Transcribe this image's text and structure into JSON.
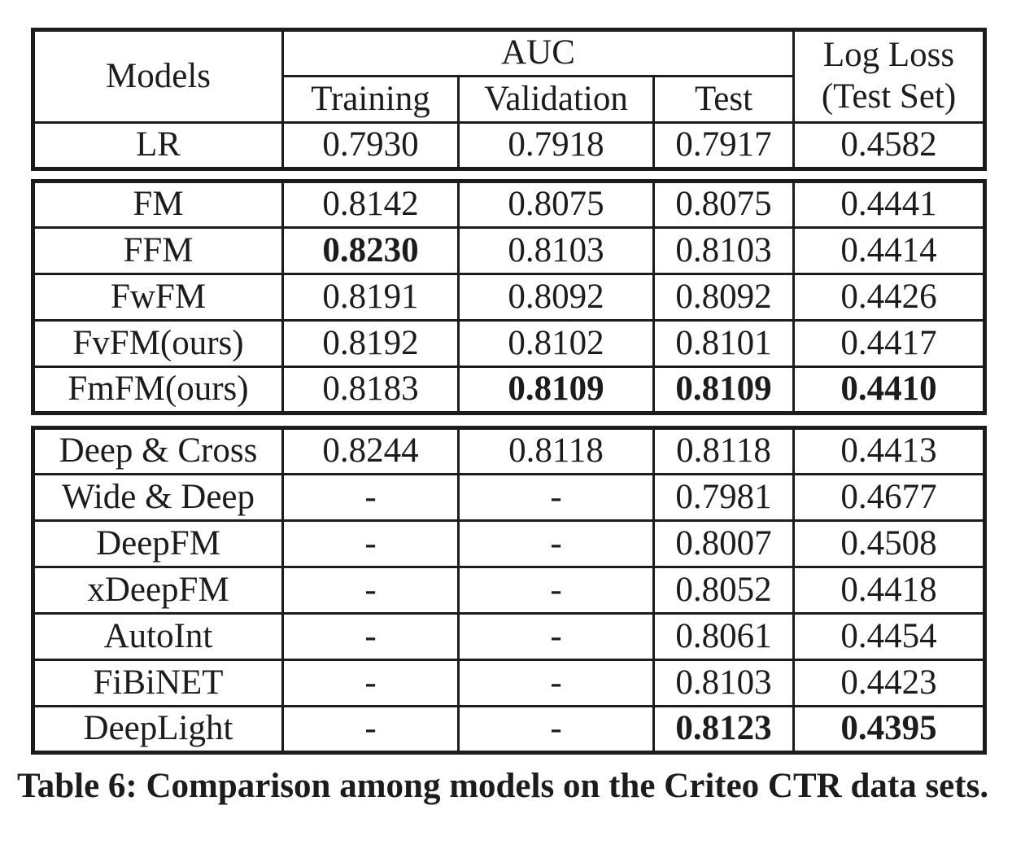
{
  "header": {
    "models": "Models",
    "auc": "AUC",
    "sub": [
      "Training",
      "Validation",
      "Test"
    ],
    "logloss_line1": "Log Loss",
    "logloss_line2": "(Test Set)"
  },
  "groups": [
    {
      "rows": [
        {
          "model": "LR",
          "values": [
            "0.7930",
            "0.7918",
            "0.7917",
            "0.4582"
          ],
          "bold": [
            false,
            false,
            false,
            false
          ]
        }
      ]
    },
    {
      "rows": [
        {
          "model": "FM",
          "values": [
            "0.8142",
            "0.8075",
            "0.8075",
            "0.4441"
          ],
          "bold": [
            false,
            false,
            false,
            false
          ]
        },
        {
          "model": "FFM",
          "values": [
            "0.8230",
            "0.8103",
            "0.8103",
            "0.4414"
          ],
          "bold": [
            true,
            false,
            false,
            false
          ]
        },
        {
          "model": "FwFM",
          "values": [
            "0.8191",
            "0.8092",
            "0.8092",
            "0.4426"
          ],
          "bold": [
            false,
            false,
            false,
            false
          ]
        },
        {
          "model": "FvFM(ours)",
          "values": [
            "0.8192",
            "0.8102",
            "0.8101",
            "0.4417"
          ],
          "bold": [
            false,
            false,
            false,
            false
          ]
        },
        {
          "model": "FmFM(ours)",
          "values": [
            "0.8183",
            "0.8109",
            "0.8109",
            "0.4410"
          ],
          "bold": [
            false,
            true,
            true,
            true
          ]
        }
      ]
    },
    {
      "rows": [
        {
          "model": "Deep & Cross",
          "values": [
            "0.8244",
            "0.8118",
            "0.8118",
            "0.4413"
          ],
          "bold": [
            false,
            false,
            false,
            false
          ]
        },
        {
          "model": "Wide & Deep",
          "values": [
            "-",
            "-",
            "0.7981",
            "0.4677"
          ],
          "bold": [
            false,
            false,
            false,
            false
          ]
        },
        {
          "model": "DeepFM",
          "values": [
            "-",
            "-",
            "0.8007",
            "0.4508"
          ],
          "bold": [
            false,
            false,
            false,
            false
          ]
        },
        {
          "model": "xDeepFM",
          "values": [
            "-",
            "-",
            "0.8052",
            "0.4418"
          ],
          "bold": [
            false,
            false,
            false,
            false
          ]
        },
        {
          "model": "AutoInt",
          "values": [
            "-",
            "-",
            "0.8061",
            "0.4454"
          ],
          "bold": [
            false,
            false,
            false,
            false
          ]
        },
        {
          "model": "FiBiNET",
          "values": [
            "-",
            "-",
            "0.8103",
            "0.4423"
          ],
          "bold": [
            false,
            false,
            false,
            false
          ]
        },
        {
          "model": "DeepLight",
          "values": [
            "-",
            "-",
            "0.8123",
            "0.4395"
          ],
          "bold": [
            false,
            false,
            true,
            true
          ]
        }
      ]
    }
  ],
  "caption": "Table 6: Comparison among models on the Criteo CTR data sets."
}
